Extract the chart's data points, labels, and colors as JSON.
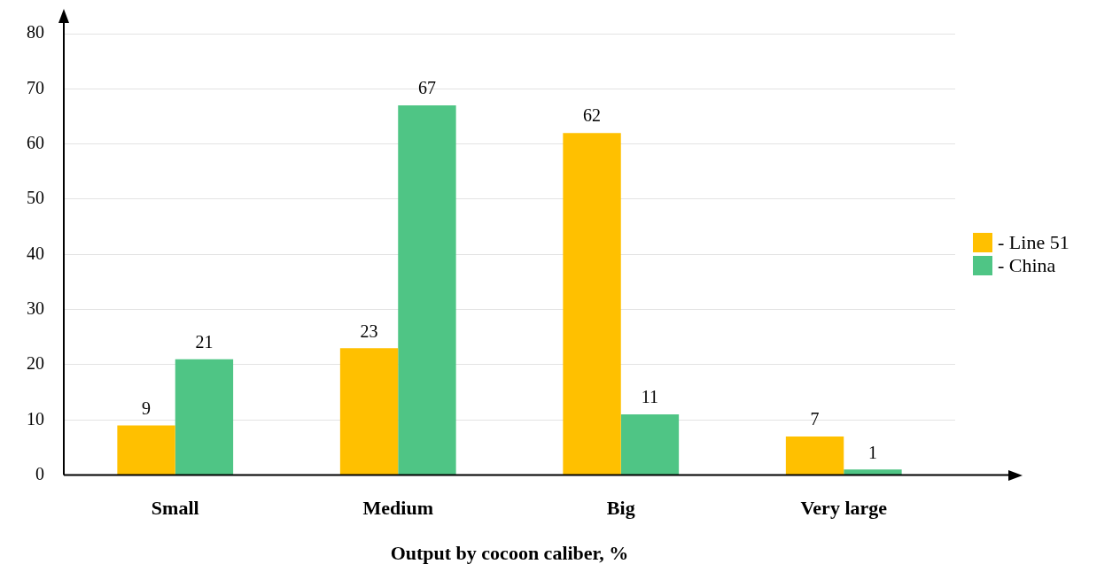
{
  "chart_data": {
    "type": "bar",
    "xlabel": "Output by cocoon caliber, %",
    "categories": [
      "Small",
      "Medium",
      "Big",
      "Very large"
    ],
    "series": [
      {
        "name": "- Line 51",
        "color": "#ffc000",
        "values": [
          9,
          23,
          62,
          7
        ]
      },
      {
        "name": "- China",
        "color": "#4fc585",
        "values": [
          21,
          67,
          11,
          1
        ]
      }
    ],
    "ylim": [
      0,
      80
    ],
    "yticks": [
      0,
      10,
      20,
      30,
      40,
      50,
      60,
      70,
      80
    ],
    "grid": "y",
    "legend": "right",
    "data_labels": true
  }
}
